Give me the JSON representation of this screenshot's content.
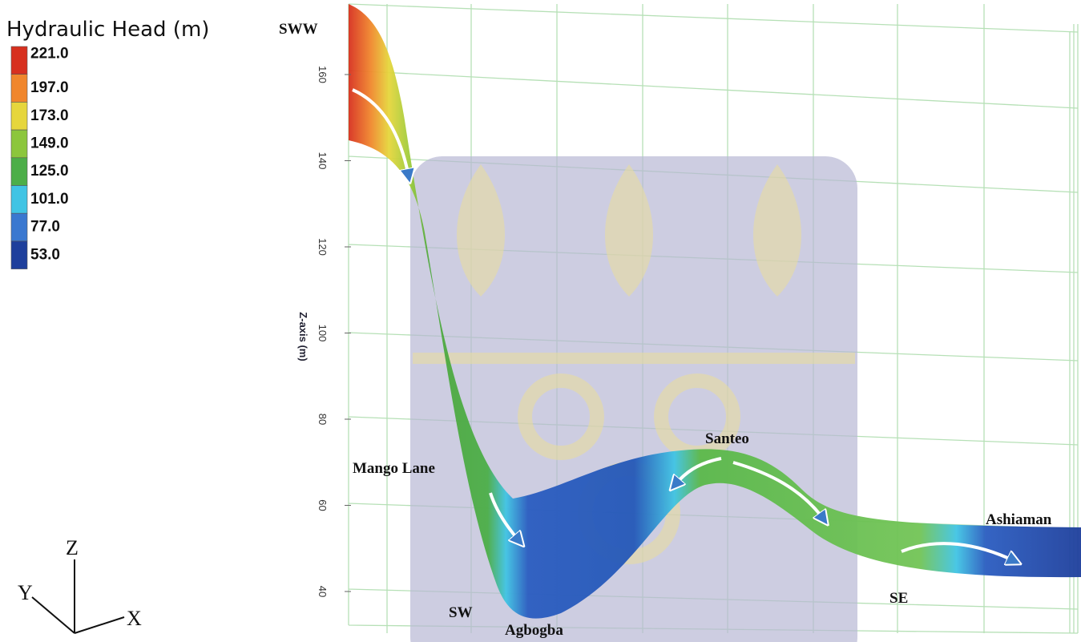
{
  "legend": {
    "title": "Hydraulic Head (m)",
    "entries": [
      {
        "label": "221.0",
        "color": "#d7301f"
      },
      {
        "label": "197.0",
        "color": "#f0862c"
      },
      {
        "label": "173.0",
        "color": "#e6d63c"
      },
      {
        "label": "149.0",
        "color": "#8cc63c"
      },
      {
        "label": "125.0",
        "color": "#4cae48"
      },
      {
        "label": "101.0",
        "color": "#40c4e4"
      },
      {
        "label": "77.0",
        "color": "#3a78d0"
      },
      {
        "label": "53.0",
        "color": "#1e3f9c"
      }
    ]
  },
  "z_axis": {
    "label": "Z-axis (m)",
    "ticks": [
      "160",
      "140",
      "120",
      "100",
      "80",
      "60",
      "40"
    ]
  },
  "places": {
    "sww": "SWW",
    "mango_lane": "Mango Lane",
    "sw": "SW",
    "agbogba": "Agbogba",
    "santeo": "Santeo",
    "se": "SE",
    "ashiaman": "Ashiaman"
  },
  "triad": {
    "z": "Z",
    "y": "Y",
    "x": "X"
  }
}
